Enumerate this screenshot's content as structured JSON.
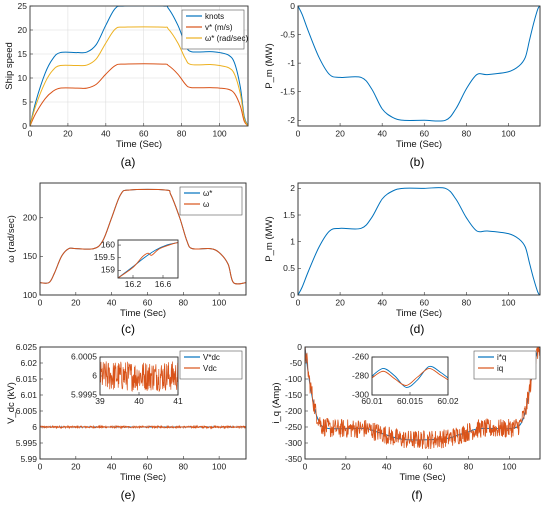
{
  "colors": {
    "blue": "#0072BD",
    "orange": "#D95319",
    "yellow": "#EDB120",
    "purple": "#7E2F8E"
  },
  "chart_data": [
    {
      "id": "a",
      "type": "line",
      "caption": "(a)",
      "xlabel": "Time (Sec)",
      "ylabel": "Ship speed",
      "xlim": [
        0,
        115
      ],
      "ylim": [
        0,
        25
      ],
      "xticks": [
        0,
        20,
        40,
        60,
        80,
        100
      ],
      "yticks": [
        0,
        5,
        10,
        15,
        20,
        25
      ],
      "grid": true,
      "legend": "top-right",
      "series": [
        {
          "name": "knots",
          "color": "#0072BD",
          "x": [
            0,
            3,
            8,
            12,
            16,
            25,
            30,
            35,
            40,
            45,
            50,
            70,
            73,
            78,
            82,
            85,
            95,
            100,
            105,
            108,
            111,
            113,
            115
          ],
          "y": [
            0,
            5,
            11,
            14,
            15.3,
            15.3,
            15.4,
            17,
            21,
            24.5,
            25,
            25,
            24.5,
            21,
            17,
            15.5,
            15.5,
            15.3,
            14.7,
            13,
            8,
            2,
            0
          ]
        },
        {
          "name": "v* (m/s)",
          "color": "#D95319",
          "x": [
            0,
            3,
            8,
            12,
            16,
            25,
            30,
            35,
            40,
            45,
            50,
            70,
            73,
            78,
            82,
            85,
            95,
            100,
            105,
            108,
            111,
            113,
            115
          ],
          "y": [
            0,
            2.6,
            5.7,
            7.2,
            7.9,
            7.9,
            7.9,
            8.7,
            10.8,
            12.6,
            12.9,
            12.9,
            12.6,
            10.8,
            8.7,
            8,
            8,
            7.9,
            7.6,
            6.7,
            4.1,
            1,
            0
          ]
        },
        {
          "name": "ω* (rad/sec)",
          "color": "#EDB120",
          "x": [
            0,
            3,
            8,
            12,
            16,
            25,
            30,
            35,
            40,
            45,
            50,
            70,
            73,
            78,
            82,
            85,
            95,
            100,
            105,
            108,
            111,
            113,
            115
          ],
          "y": [
            0,
            4.2,
            9.1,
            11.6,
            12.6,
            12.6,
            12.7,
            14,
            17.3,
            20.2,
            20.6,
            20.6,
            20.2,
            17.3,
            14,
            12.8,
            12.8,
            12.6,
            12.1,
            10.7,
            6.6,
            1.6,
            0
          ]
        }
      ]
    },
    {
      "id": "b",
      "type": "line",
      "caption": "(b)",
      "xlabel": "Time (Sec)",
      "ylabel": "P_m (MW)",
      "xlim": [
        0,
        115
      ],
      "ylim": [
        -2.1,
        0
      ],
      "xticks": [
        0,
        20,
        40,
        60,
        80,
        100
      ],
      "yticks": [
        -2,
        -1.5,
        -1,
        -0.5,
        0
      ],
      "grid": false,
      "series": [
        {
          "name": "",
          "color": "#0072BD",
          "x": [
            0,
            2,
            5,
            10,
            15,
            20,
            30,
            35,
            40,
            45,
            50,
            60,
            70,
            75,
            80,
            85,
            90,
            100,
            105,
            108,
            110,
            112,
            114,
            115
          ],
          "y": [
            0,
            -0.15,
            -0.45,
            -0.9,
            -1.2,
            -1.25,
            -1.25,
            -1.45,
            -1.8,
            -1.95,
            -2,
            -2,
            -2,
            -1.8,
            -1.45,
            -1.2,
            -1.2,
            -1.15,
            -1.05,
            -0.9,
            -0.6,
            -0.3,
            -0.05,
            0
          ]
        }
      ]
    },
    {
      "id": "c",
      "type": "line",
      "caption": "(c)",
      "xlabel": "Time (Sec)",
      "ylabel": "ω (rad/sec)",
      "xlim": [
        0,
        115
      ],
      "ylim": [
        100,
        245
      ],
      "xticks": [
        0,
        20,
        40,
        60,
        80,
        100
      ],
      "yticks": [
        100,
        150,
        200
      ],
      "grid": false,
      "legend": "top-right",
      "series": [
        {
          "name": "ω*",
          "color": "#0072BD",
          "x": [
            0,
            5,
            8,
            12,
            16,
            20,
            30,
            35,
            40,
            45,
            50,
            70,
            73,
            78,
            82,
            85,
            95,
            100,
            105,
            108,
            115
          ],
          "y": [
            116,
            116,
            128,
            150,
            160,
            160,
            160,
            170,
            200,
            230,
            236,
            236,
            230,
            200,
            170,
            160,
            160,
            155,
            140,
            116,
            116
          ]
        },
        {
          "name": "ω",
          "color": "#D95319",
          "x": [
            0,
            5,
            8,
            12,
            16,
            20,
            30,
            35,
            40,
            45,
            50,
            70,
            73,
            78,
            82,
            85,
            95,
            100,
            105,
            108,
            115
          ],
          "y": [
            116,
            116,
            128,
            150,
            160,
            160,
            160,
            170,
            200,
            230,
            236,
            236,
            230,
            200,
            170,
            160,
            160,
            155,
            140,
            116,
            116
          ]
        }
      ],
      "inset": {
        "xlim": [
          16,
          16.8
        ],
        "ylim": [
          158.7,
          160.2
        ],
        "xticks": [
          16.2,
          16.6
        ],
        "yticks": [
          159,
          159.5,
          160
        ],
        "series": [
          {
            "color": "#0072BD",
            "x": [
              16,
              16.2,
              16.35,
              16.5,
              16.65,
              16.8
            ],
            "y": [
              158.7,
              159.15,
              159.5,
              159.8,
              160.0,
              160.1
            ]
          },
          {
            "color": "#D95319",
            "x": [
              16,
              16.2,
              16.33,
              16.4,
              16.45,
              16.55,
              16.7,
              16.8
            ],
            "y": [
              158.7,
              159.12,
              159.55,
              159.68,
              159.6,
              159.85,
              160.02,
              160.1
            ]
          }
        ]
      }
    },
    {
      "id": "d",
      "type": "line",
      "caption": "(d)",
      "xlabel": "Time (Sec)",
      "ylabel": "P_m (MW)",
      "xlim": [
        0,
        115
      ],
      "ylim": [
        0,
        2.1
      ],
      "xticks": [
        0,
        20,
        40,
        60,
        80,
        100
      ],
      "yticks": [
        0,
        0.5,
        1,
        1.5,
        2
      ],
      "grid": false,
      "series": [
        {
          "name": "",
          "color": "#0072BD",
          "x": [
            0,
            2,
            5,
            10,
            15,
            20,
            30,
            35,
            40,
            45,
            50,
            60,
            70,
            75,
            80,
            85,
            90,
            100,
            105,
            108,
            110,
            112,
            114,
            115
          ],
          "y": [
            0,
            0.15,
            0.45,
            0.9,
            1.2,
            1.25,
            1.25,
            1.45,
            1.8,
            1.95,
            2,
            2,
            2,
            1.8,
            1.45,
            1.2,
            1.2,
            1.15,
            1.05,
            0.9,
            0.6,
            0.3,
            0.05,
            0
          ]
        }
      ]
    },
    {
      "id": "e",
      "type": "line",
      "caption": "(e)",
      "xlabel": "Time (Sec)",
      "ylabel": "V_dc (kV)",
      "xlim": [
        0,
        115
      ],
      "ylim": [
        5.99,
        6.025
      ],
      "xticks": [
        0,
        20,
        40,
        60,
        80,
        100
      ],
      "yticks": [
        5.99,
        5.995,
        6,
        6.005,
        6.01,
        6.015,
        6.02,
        6.025
      ],
      "grid": false,
      "legend": "top-right",
      "series": [
        {
          "name": "V*dc",
          "color": "#0072BD",
          "x": [
            0,
            115
          ],
          "y": [
            6,
            6
          ]
        },
        {
          "name": "Vdc",
          "color": "#D95319",
          "x": [
            0,
            115
          ],
          "y": [
            6,
            6
          ],
          "noise": 0.0003
        }
      ],
      "inset": {
        "xlim": [
          39,
          41
        ],
        "ylim": [
          5.9995,
          6.0005
        ],
        "xticks": [
          39,
          40,
          41
        ],
        "yticks": [
          5.9995,
          6,
          6.0005
        ],
        "series": [
          {
            "color": "#D95319",
            "x": [
              39,
              41
            ],
            "y": [
              6,
              6
            ],
            "noise": 0.0004
          }
        ]
      }
    },
    {
      "id": "f",
      "type": "line",
      "caption": "(f)",
      "xlabel": "Time (Sec)",
      "ylabel": "i_q (Amp)",
      "xlim": [
        0,
        115
      ],
      "ylim": [
        -350,
        0
      ],
      "xticks": [
        0,
        20,
        40,
        60,
        80,
        100
      ],
      "yticks": [
        -350,
        -300,
        -250,
        -200,
        -150,
        -100,
        -50,
        0
      ],
      "grid": false,
      "legend": "top-right",
      "series": [
        {
          "name": "i*q",
          "color": "#0072BD",
          "x": [
            0,
            2,
            5,
            8,
            12,
            20,
            30,
            35,
            40,
            45,
            50,
            60,
            70,
            75,
            80,
            85,
            95,
            100,
            105,
            108,
            110,
            112,
            114,
            115
          ],
          "y": [
            0,
            -100,
            -200,
            -245,
            -255,
            -255,
            -255,
            -265,
            -275,
            -285,
            -290,
            -290,
            -285,
            -275,
            -265,
            -255,
            -255,
            -255,
            -245,
            -200,
            -130,
            -60,
            -10,
            0
          ]
        },
        {
          "name": "iq",
          "color": "#D95319",
          "noise": 30,
          "x": [
            0,
            2,
            5,
            8,
            12,
            20,
            30,
            35,
            40,
            45,
            50,
            60,
            70,
            75,
            80,
            85,
            95,
            100,
            105,
            108,
            110,
            112,
            114,
            115
          ],
          "y": [
            0,
            -100,
            -200,
            -245,
            -255,
            -255,
            -255,
            -265,
            -275,
            -285,
            -290,
            -290,
            -285,
            -275,
            -265,
            -255,
            -255,
            -255,
            -245,
            -200,
            -130,
            -60,
            -10,
            0
          ]
        }
      ],
      "inset": {
        "xlim": [
          60.01,
          60.02
        ],
        "ylim": [
          -300,
          -260
        ],
        "xticks": [
          60.01,
          60.015,
          60.02
        ],
        "yticks": [
          -300,
          -280,
          -260
        ],
        "series": [
          {
            "color": "#0072BD",
            "x": [
              60.01,
              60.0115,
              60.013,
              60.0145,
              60.016,
              60.0175,
              60.019,
              60.02
            ],
            "y": [
              -280,
              -272,
              -280,
              -292,
              -284,
              -270,
              -276,
              -282
            ]
          },
          {
            "color": "#D95319",
            "x": [
              60.01,
              60.0115,
              60.013,
              60.0145,
              60.016,
              60.0175,
              60.019,
              60.02
            ],
            "y": [
              -282,
              -275,
              -283,
              -290,
              -281,
              -272,
              -279,
              -284
            ]
          }
        ]
      }
    }
  ]
}
